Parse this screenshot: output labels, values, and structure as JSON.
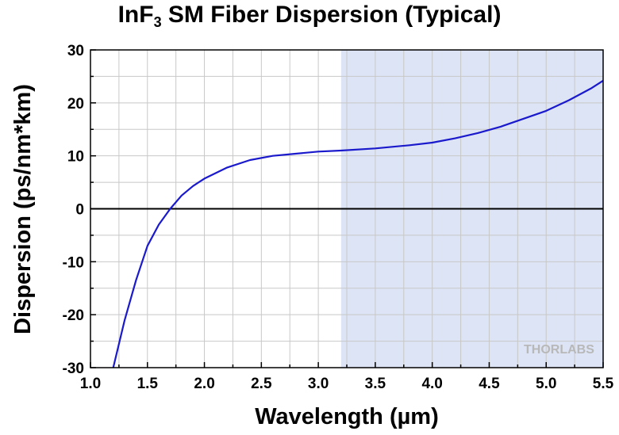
{
  "chart_data": {
    "type": "line",
    "title_main": "InF",
    "title_sub": "3",
    "title_rest": " SM Fiber Dispersion (Typical)",
    "xlabel": "Wavelength (µm)",
    "ylabel": "Dispersion (ps/nm*km)",
    "xlim": [
      1.0,
      5.5
    ],
    "ylim": [
      -30,
      30
    ],
    "x_ticks": [
      "1.0",
      "1.5",
      "2.0",
      "2.5",
      "3.0",
      "3.5",
      "4.0",
      "4.5",
      "5.0",
      "5.5"
    ],
    "y_ticks": [
      "-30",
      "-20",
      "-10",
      "0",
      "10",
      "20",
      "30"
    ],
    "grid": true,
    "shaded_region": {
      "x_start": 3.2,
      "x_end": 5.5,
      "color": "#dce4f5"
    },
    "series": [
      {
        "color": "#1a1acc",
        "x": [
          1.2,
          1.3,
          1.4,
          1.5,
          1.6,
          1.7,
          1.8,
          1.9,
          2.0,
          2.2,
          2.4,
          2.6,
          2.8,
          3.0,
          3.2,
          3.5,
          3.8,
          4.0,
          4.2,
          4.4,
          4.6,
          4.8,
          5.0,
          5.2,
          5.4,
          5.5
        ],
        "y": [
          -30.5,
          -21.0,
          -13.5,
          -7.0,
          -3.0,
          0.0,
          2.5,
          4.3,
          5.7,
          7.8,
          9.2,
          10.0,
          10.4,
          10.8,
          11.0,
          11.4,
          12.0,
          12.5,
          13.3,
          14.3,
          15.5,
          17.0,
          18.5,
          20.5,
          22.8,
          24.2
        ]
      }
    ],
    "colors": {
      "axis": "#000000",
      "grid": "#c8c8c8",
      "zero_line": "#000000"
    }
  },
  "watermark": "THORLABS"
}
